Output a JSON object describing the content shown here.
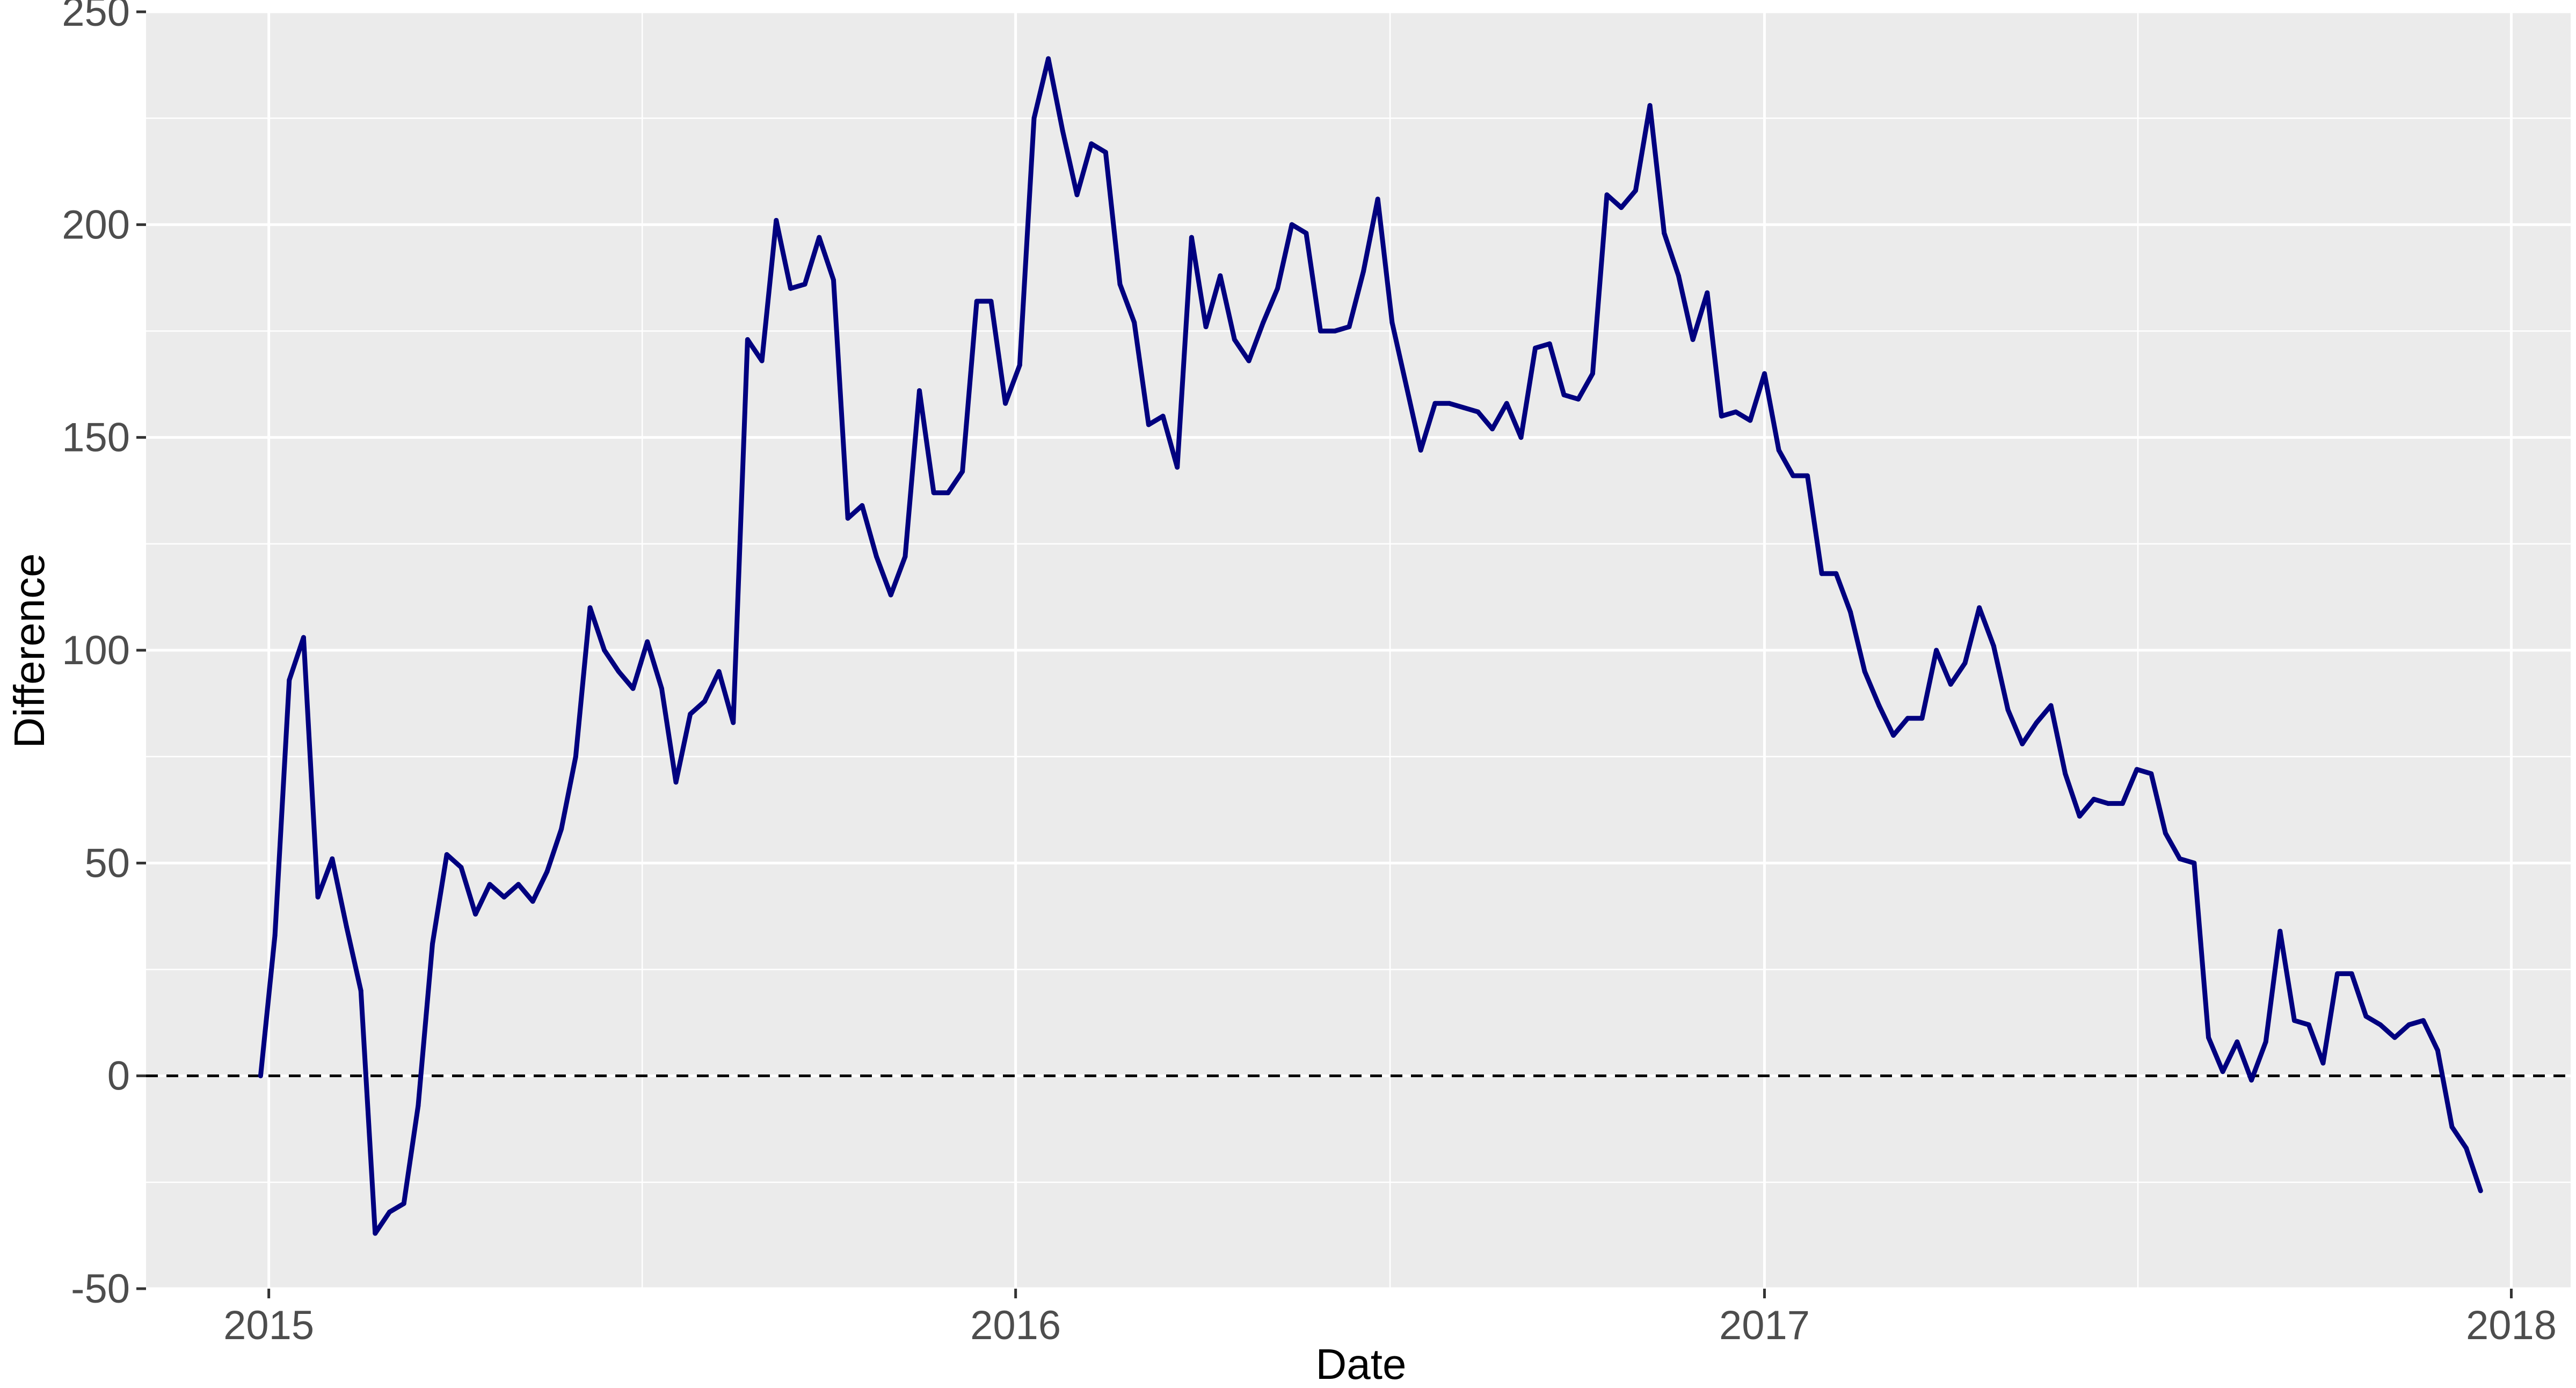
{
  "chart_data": {
    "type": "line",
    "title": "",
    "xlabel": "Date",
    "ylabel": "Difference",
    "x_axis": {
      "type": "date",
      "range": [
        "2014-11-02",
        "2018-01-30"
      ],
      "ticks": [
        {
          "date": "2015-01-01",
          "label": "2015"
        },
        {
          "date": "2016-01-01",
          "label": "2016"
        },
        {
          "date": "2017-01-01",
          "label": "2017"
        },
        {
          "date": "2018-01-01",
          "label": "2018"
        }
      ]
    },
    "y_axis": {
      "range": [
        -50,
        250
      ],
      "ticks": [
        -50,
        0,
        50,
        100,
        150,
        200,
        250
      ],
      "tick_labels": [
        "-50",
        "0",
        "50",
        "100",
        "150",
        "200",
        "250"
      ]
    },
    "grid": true,
    "legend": "none",
    "reference_line": {
      "y": 0,
      "style": "dashed"
    },
    "colors": {
      "line": "#00007f",
      "panel": "#ebebeb",
      "grid": "#ffffff",
      "text": "#333333",
      "axis_title": "#000000"
    },
    "series": [
      {
        "points": [
          [
            "2014-12-28",
            0
          ],
          [
            "2015-01-04",
            33
          ],
          [
            "2015-01-11",
            93
          ],
          [
            "2015-01-18",
            103
          ],
          [
            "2015-01-25",
            42
          ],
          [
            "2015-02-01",
            51
          ],
          [
            "2015-02-08",
            35
          ],
          [
            "2015-02-15",
            20
          ],
          [
            "2015-02-22",
            -37
          ],
          [
            "2015-03-01",
            -32
          ],
          [
            "2015-03-08",
            -30
          ],
          [
            "2015-03-15",
            -7
          ],
          [
            "2015-03-22",
            31
          ],
          [
            "2015-03-29",
            52
          ],
          [
            "2015-04-05",
            49
          ],
          [
            "2015-04-12",
            38
          ],
          [
            "2015-04-19",
            45
          ],
          [
            "2015-04-26",
            42
          ],
          [
            "2015-05-03",
            45
          ],
          [
            "2015-05-10",
            41
          ],
          [
            "2015-05-17",
            48
          ],
          [
            "2015-05-24",
            58
          ],
          [
            "2015-05-31",
            75
          ],
          [
            "2015-06-07",
            110
          ],
          [
            "2015-06-14",
            100
          ],
          [
            "2015-06-21",
            95
          ],
          [
            "2015-06-28",
            91
          ],
          [
            "2015-07-05",
            102
          ],
          [
            "2015-07-12",
            91
          ],
          [
            "2015-07-19",
            69
          ],
          [
            "2015-07-26",
            85
          ],
          [
            "2015-08-02",
            88
          ],
          [
            "2015-08-09",
            95
          ],
          [
            "2015-08-16",
            83
          ],
          [
            "2015-08-23",
            173
          ],
          [
            "2015-08-30",
            168
          ],
          [
            "2015-09-06",
            201
          ],
          [
            "2015-09-13",
            185
          ],
          [
            "2015-09-20",
            186
          ],
          [
            "2015-09-27",
            197
          ],
          [
            "2015-10-04",
            187
          ],
          [
            "2015-10-11",
            131
          ],
          [
            "2015-10-18",
            134
          ],
          [
            "2015-10-25",
            122
          ],
          [
            "2015-11-01",
            113
          ],
          [
            "2015-11-08",
            122
          ],
          [
            "2015-11-15",
            161
          ],
          [
            "2015-11-22",
            137
          ],
          [
            "2015-11-29",
            137
          ],
          [
            "2015-12-06",
            142
          ],
          [
            "2015-12-13",
            182
          ],
          [
            "2015-12-20",
            182
          ],
          [
            "2015-12-27",
            158
          ],
          [
            "2016-01-03",
            167
          ],
          [
            "2016-01-10",
            225
          ],
          [
            "2016-01-17",
            239
          ],
          [
            "2016-01-24",
            222
          ],
          [
            "2016-01-31",
            207
          ],
          [
            "2016-02-07",
            219
          ],
          [
            "2016-02-14",
            217
          ],
          [
            "2016-02-21",
            186
          ],
          [
            "2016-02-28",
            177
          ],
          [
            "2016-03-06",
            153
          ],
          [
            "2016-03-13",
            155
          ],
          [
            "2016-03-20",
            143
          ],
          [
            "2016-03-27",
            197
          ],
          [
            "2016-04-03",
            176
          ],
          [
            "2016-04-10",
            188
          ],
          [
            "2016-04-17",
            173
          ],
          [
            "2016-04-24",
            168
          ],
          [
            "2016-05-01",
            177
          ],
          [
            "2016-05-08",
            185
          ],
          [
            "2016-05-15",
            200
          ],
          [
            "2016-05-22",
            198
          ],
          [
            "2016-05-29",
            175
          ],
          [
            "2016-06-05",
            175
          ],
          [
            "2016-06-12",
            176
          ],
          [
            "2016-06-19",
            189
          ],
          [
            "2016-06-26",
            206
          ],
          [
            "2016-07-03",
            177
          ],
          [
            "2016-07-10",
            162
          ],
          [
            "2016-07-17",
            147
          ],
          [
            "2016-07-24",
            158
          ],
          [
            "2016-07-31",
            158
          ],
          [
            "2016-08-07",
            157
          ],
          [
            "2016-08-14",
            156
          ],
          [
            "2016-08-21",
            152
          ],
          [
            "2016-08-28",
            158
          ],
          [
            "2016-09-04",
            150
          ],
          [
            "2016-09-11",
            171
          ],
          [
            "2016-09-18",
            172
          ],
          [
            "2016-09-25",
            160
          ],
          [
            "2016-10-02",
            159
          ],
          [
            "2016-10-09",
            165
          ],
          [
            "2016-10-16",
            207
          ],
          [
            "2016-10-23",
            204
          ],
          [
            "2016-10-30",
            208
          ],
          [
            "2016-11-06",
            228
          ],
          [
            "2016-11-13",
            198
          ],
          [
            "2016-11-20",
            188
          ],
          [
            "2016-11-27",
            173
          ],
          [
            "2016-12-04",
            184
          ],
          [
            "2016-12-11",
            155
          ],
          [
            "2016-12-18",
            156
          ],
          [
            "2016-12-25",
            154
          ],
          [
            "2017-01-01",
            165
          ],
          [
            "2017-01-08",
            147
          ],
          [
            "2017-01-15",
            141
          ],
          [
            "2017-01-22",
            141
          ],
          [
            "2017-01-29",
            118
          ],
          [
            "2017-02-05",
            118
          ],
          [
            "2017-02-12",
            109
          ],
          [
            "2017-02-19",
            95
          ],
          [
            "2017-02-26",
            87
          ],
          [
            "2017-03-05",
            80
          ],
          [
            "2017-03-12",
            84
          ],
          [
            "2017-03-19",
            84
          ],
          [
            "2017-03-26",
            100
          ],
          [
            "2017-04-02",
            92
          ],
          [
            "2017-04-09",
            97
          ],
          [
            "2017-04-16",
            110
          ],
          [
            "2017-04-23",
            101
          ],
          [
            "2017-04-30",
            86
          ],
          [
            "2017-05-07",
            78
          ],
          [
            "2017-05-14",
            83
          ],
          [
            "2017-05-21",
            87
          ],
          [
            "2017-05-28",
            71
          ],
          [
            "2017-06-04",
            61
          ],
          [
            "2017-06-11",
            65
          ],
          [
            "2017-06-18",
            64
          ],
          [
            "2017-06-25",
            64
          ],
          [
            "2017-07-02",
            72
          ],
          [
            "2017-07-09",
            71
          ],
          [
            "2017-07-16",
            57
          ],
          [
            "2017-07-23",
            51
          ],
          [
            "2017-07-30",
            50
          ],
          [
            "2017-08-06",
            9
          ],
          [
            "2017-08-13",
            1
          ],
          [
            "2017-08-20",
            8
          ],
          [
            "2017-08-27",
            -1
          ],
          [
            "2017-09-03",
            8
          ],
          [
            "2017-09-10",
            34
          ],
          [
            "2017-09-17",
            13
          ],
          [
            "2017-09-24",
            12
          ],
          [
            "2017-10-01",
            3
          ],
          [
            "2017-10-08",
            24
          ],
          [
            "2017-10-15",
            24
          ],
          [
            "2017-10-22",
            14
          ],
          [
            "2017-10-29",
            12
          ],
          [
            "2017-11-05",
            9
          ],
          [
            "2017-11-12",
            12
          ],
          [
            "2017-11-19",
            13
          ],
          [
            "2017-11-26",
            6
          ],
          [
            "2017-12-03",
            -12
          ],
          [
            "2017-12-10",
            -17
          ],
          [
            "2017-12-17",
            -27
          ]
        ]
      }
    ]
  }
}
